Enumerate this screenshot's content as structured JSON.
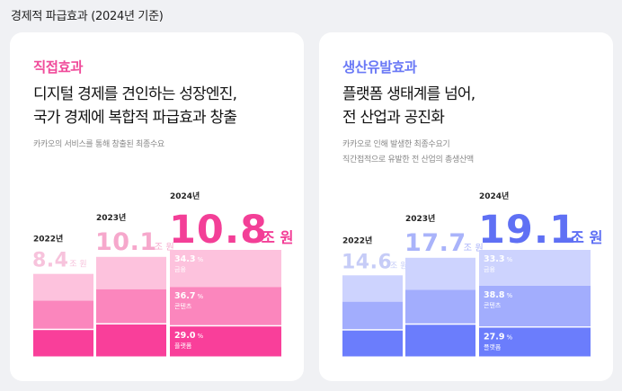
{
  "page": {
    "title": "경제적 파급효과 (2024년 기준)"
  },
  "cards": [
    {
      "eyebrow": "직접효과",
      "headline": [
        "디지털 경제를 견인하는 성장엔진,",
        "국가 경제에 복합적 파급효과 창출"
      ],
      "description": [
        "카카오의 서비스를 통해 창출된 최종수요"
      ]
    },
    {
      "eyebrow": "생산유발효과",
      "headline": [
        "플랫폼 생태계를 넘어,",
        "전 산업과 공진화"
      ],
      "description": [
        "카카오로 인해 발생한 최종수요기",
        "직간접적으로 유발한 전 산업의 총생산액"
      ]
    }
  ],
  "colors": {
    "direct_accent": "#f04c9b",
    "direct_segments": [
      "#f93f9a",
      "#fb86bd",
      "#fdc2dd"
    ],
    "direct_values_muted": [
      "#f7c3dc",
      "#f6a8cc",
      "#f33f97"
    ],
    "induced_accent": "#6a79f6",
    "induced_segments": [
      "#6b7dfc",
      "#a2adfd",
      "#cdd3fe"
    ],
    "induced_values_muted": [
      "#c6ccf7",
      "#a9b3fa",
      "#5f70f4"
    ]
  },
  "chart_data": [
    {
      "type": "bar",
      "stacked": true,
      "categories": [
        "2022년",
        "2023년",
        "2024년"
      ],
      "values": [
        8.4,
        10.1,
        10.8
      ],
      "unit": "조 원",
      "segment_order": [
        "플랫폼",
        "콘텐츠",
        "금융"
      ],
      "shares_2024": [
        {
          "name": "금융",
          "percent": "34.3"
        },
        {
          "name": "콘텐츠",
          "percent": "36.7"
        },
        {
          "name": "플랫폼",
          "percent": "29.0"
        }
      ],
      "percent_sign": "%"
    },
    {
      "type": "bar",
      "stacked": true,
      "categories": [
        "2022년",
        "2023년",
        "2024년"
      ],
      "values": [
        14.6,
        17.7,
        19.1
      ],
      "unit": "조 원",
      "segment_order": [
        "플랫폼",
        "콘텐츠",
        "금융"
      ],
      "shares_2024": [
        {
          "name": "금융",
          "percent": "33.3"
        },
        {
          "name": "콘텐츠",
          "percent": "38.8"
        },
        {
          "name": "플랫폼",
          "percent": "27.9"
        }
      ],
      "percent_sign": "%"
    }
  ]
}
